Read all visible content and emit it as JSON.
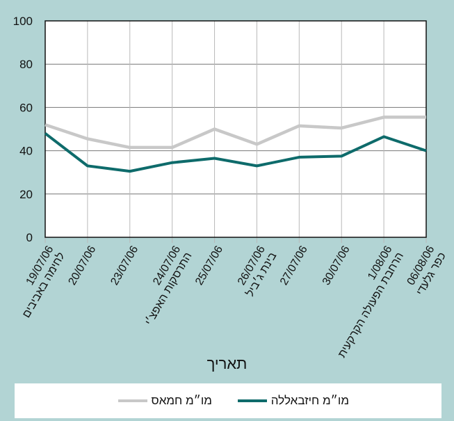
{
  "chart_data": {
    "type": "line",
    "xlabel": "תאריך",
    "ylabel": "",
    "ylim": [
      0,
      100
    ],
    "yticks": [
      0,
      20,
      40,
      60,
      80,
      100
    ],
    "grid": true,
    "legend_position": "bottom",
    "categories": [
      [
        "19/07/06",
        "לחימה באביבים"
      ],
      [
        "20/07/06"
      ],
      [
        "23/07/06"
      ],
      [
        "24/07/06",
        "התרסקות האפצ׳י"
      ],
      [
        "25/07/06"
      ],
      [
        "26/07/06",
        "בינת ג׳ביל"
      ],
      [
        "27/07/06"
      ],
      [
        "30/07/06"
      ],
      [
        "1/08/06",
        "הרחבת הפעולה הקרקעית"
      ],
      [
        "06/08/06",
        "כפר גלעדי"
      ]
    ],
    "series": [
      {
        "name": "מו״מ חיזבאללה",
        "color": "#0e6b6b",
        "values": [
          48,
          33,
          30.5,
          34.5,
          36.5,
          33,
          37,
          37.5,
          46.5,
          40
        ]
      },
      {
        "name": "מו״מ חמאס",
        "color": "#c8c8c8",
        "values": [
          52,
          45.5,
          41.5,
          41.5,
          50,
          43,
          51.5,
          50.5,
          55.5,
          55.5
        ]
      }
    ]
  }
}
